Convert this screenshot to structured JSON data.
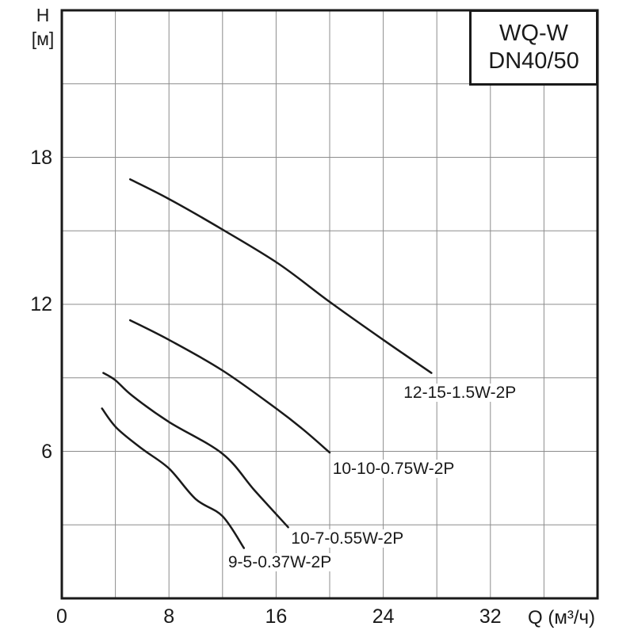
{
  "title_box": {
    "line1": "WQ-W",
    "line2": "DN40/50"
  },
  "axes": {
    "y_title_line1": "H",
    "y_title_line2": "[м]",
    "x_title": "Q (м³/ч)"
  },
  "colors": {
    "background": "#ffffff",
    "border": "#1a1a1a",
    "grid": "#8c8c8c",
    "curve": "#1a1a1a",
    "text": "#1a1a1a"
  },
  "chart_data": {
    "type": "line",
    "title": "WQ-W DN40/50",
    "xlabel": "Q (м³/ч)",
    "ylabel": "H [м]",
    "xlim": [
      0,
      40
    ],
    "ylim": [
      0,
      24
    ],
    "x_grid_step": 4,
    "y_grid_step": 3,
    "x_ticks": [
      0,
      8,
      16,
      24,
      32
    ],
    "y_ticks": [
      18,
      12,
      6
    ],
    "grid": true,
    "legend_position": "inline-labels",
    "series": [
      {
        "name": "12-15-1.5W-2P",
        "points": [
          [
            5.1,
            17.1
          ],
          [
            8,
            16.3
          ],
          [
            12,
            15.05
          ],
          [
            16.2,
            13.65
          ],
          [
            20,
            12.1
          ],
          [
            24,
            10.55
          ],
          [
            27.6,
            9.2
          ]
        ],
        "label_anchor": [
          25.4,
          8.25
        ]
      },
      {
        "name": "10-10-0.75W-2P",
        "points": [
          [
            5.1,
            11.35
          ],
          [
            8,
            10.55
          ],
          [
            12,
            9.3
          ],
          [
            16,
            7.75
          ],
          [
            18,
            6.9
          ],
          [
            20,
            5.95
          ]
        ],
        "label_anchor": [
          20.1,
          5.15
        ]
      },
      {
        "name": "10-7-0.55W-2P",
        "points": [
          [
            3.1,
            9.2
          ],
          [
            4,
            8.9
          ],
          [
            5.3,
            8.25
          ],
          [
            8,
            7.2
          ],
          [
            12,
            5.9
          ],
          [
            14.4,
            4.4
          ],
          [
            16.9,
            2.9
          ]
        ],
        "label_anchor": [
          17.0,
          2.3
        ]
      },
      {
        "name": "9-5-0.37W-2P",
        "points": [
          [
            3.0,
            7.75
          ],
          [
            4.1,
            6.95
          ],
          [
            6,
            6.1
          ],
          [
            8,
            5.3
          ],
          [
            10,
            4.05
          ],
          [
            12,
            3.35
          ],
          [
            13.6,
            2.05
          ]
        ],
        "label_anchor": [
          12.3,
          1.33
        ]
      }
    ]
  }
}
